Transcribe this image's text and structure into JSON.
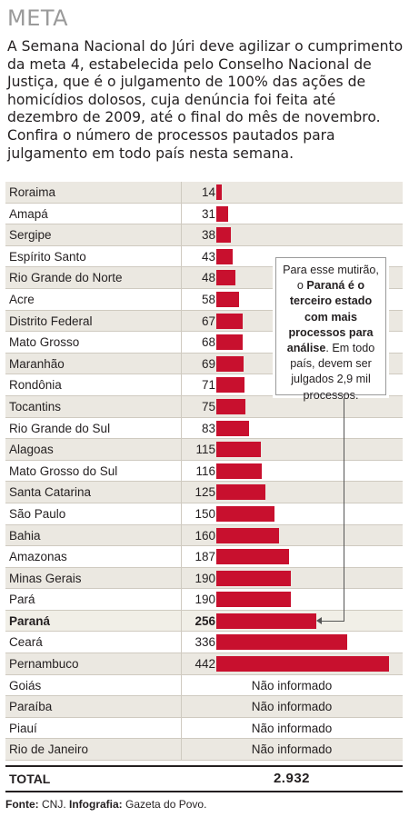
{
  "title": "META",
  "intro": "A Semana Nacional do Júri deve agilizar o cumprimento da meta 4, estabelecida pelo Conselho Nacional de Justiça, que é o julgamento de 100% das ações de homicídios dolosos, cuja denúncia foi feita até dezembro de 2009, até o final do mês de novembro. Confira o número de processos pautados para julgamento em todo país nesta semana.",
  "callout": {
    "text_before": "Para esse mutirão, o ",
    "text_bold": "Paraná é o terceiro estado com mais processos para análise",
    "text_after": ". Em todo país, devem ser julgados 2,9 mil processos."
  },
  "total": {
    "label": "TOTAL",
    "value": "2.932"
  },
  "source": {
    "label1": "Fonte:",
    "value1": " CNJ. ",
    "label2": "Infografia:",
    "value2": " Gazeta do Povo."
  },
  "colors": {
    "bar": "#c8102e",
    "row_alt": "#ebe8e1",
    "title": "#9a9a9a"
  },
  "chart_data": {
    "type": "bar",
    "orientation": "horizontal",
    "categories": [
      "Roraima",
      "Amapá",
      "Sergipe",
      "Espírito Santo",
      "Rio Grande do Norte",
      "Acre",
      "Distrito Federal",
      "Mato Grosso",
      "Maranhão",
      "Rondônia",
      "Tocantins",
      "Rio Grande do Sul",
      "Alagoas",
      "Mato Grosso do Sul",
      "Santa Catarina",
      "São Paulo",
      "Bahia",
      "Amazonas",
      "Minas Gerais",
      "Pará",
      "Paraná",
      "Ceará",
      "Pernambuco",
      "Goiás",
      "Paraíba",
      "Piauí",
      "Rio de Janeiro"
    ],
    "values": [
      14,
      31,
      38,
      43,
      48,
      58,
      67,
      68,
      69,
      71,
      75,
      83,
      115,
      116,
      125,
      150,
      160,
      187,
      190,
      190,
      256,
      336,
      442,
      null,
      null,
      null,
      null
    ],
    "value_labels": [
      "14",
      "31",
      "38",
      "43",
      "48",
      "58",
      "67",
      "68",
      "69",
      "71",
      "75",
      "83",
      "115",
      "116",
      "125",
      "150",
      "160",
      "187",
      "190",
      "190",
      "256",
      "336",
      "442",
      "Não informado",
      "Não informado",
      "Não informado",
      "Não informado"
    ],
    "highlight": "Paraná",
    "xlim": [
      0,
      442
    ]
  }
}
